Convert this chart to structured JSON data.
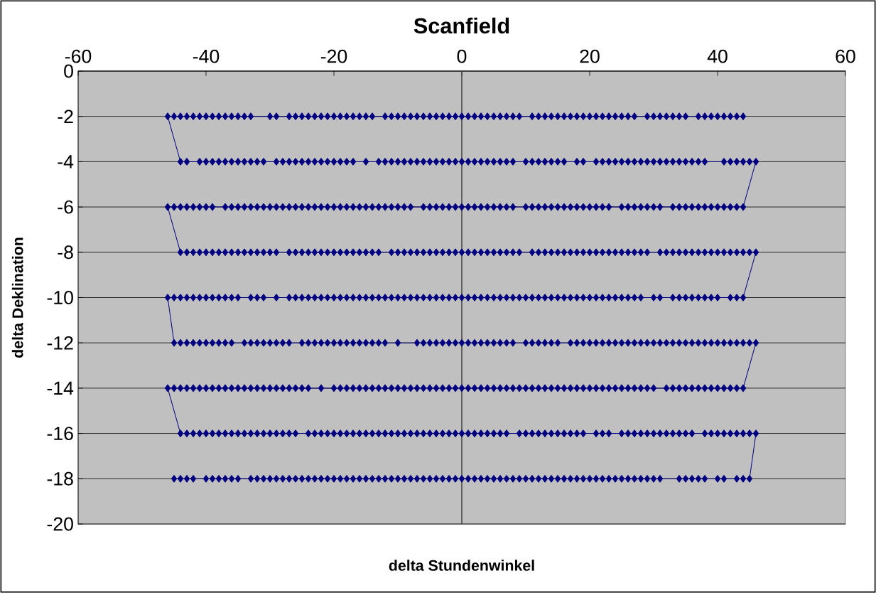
{
  "chart_data": {
    "type": "line",
    "title": "Scanfield",
    "xlabel": "delta Stundenwinkel",
    "ylabel": "delta Deklination",
    "xlim": [
      -60,
      60
    ],
    "xticks": [
      -60,
      -40,
      -20,
      0,
      20,
      40,
      60
    ],
    "ylim": [
      -20,
      0
    ],
    "yticks": [
      0,
      -2,
      -4,
      -6,
      -8,
      -10,
      -12,
      -14,
      -16,
      -18,
      -20
    ],
    "grid": "y",
    "marker": "diamond",
    "line_style": "solid",
    "series": [
      {
        "color": "#000080",
        "x": [
          44,
          43,
          42,
          41,
          40,
          39,
          38,
          37,
          35,
          34,
          33,
          32,
          31,
          30,
          29,
          27,
          26,
          25,
          24,
          23,
          22,
          21,
          20,
          19,
          18,
          17,
          16,
          15,
          14,
          13,
          12,
          11,
          9,
          8,
          7,
          6,
          5,
          4,
          3,
          2,
          1,
          0,
          -1,
          -2,
          -3,
          -4,
          -5,
          -6,
          -7,
          -8,
          -9,
          -10,
          -11,
          -12,
          -14,
          -15,
          -16,
          -17,
          -18,
          -19,
          -20,
          -21,
          -22,
          -23,
          -24,
          -25,
          -26,
          -27,
          -29,
          -30,
          -33,
          -34,
          -35,
          -36,
          -37,
          -38,
          -39,
          -40,
          -41,
          -42,
          -43,
          -44,
          -45,
          -46,
          -44,
          -43,
          -41,
          -40,
          -39,
          -38,
          -37,
          -36,
          -35,
          -34,
          -33,
          -32,
          -31,
          -29,
          -28,
          -27,
          -26,
          -25,
          -24,
          -23,
          -22,
          -21,
          -20,
          -19,
          -18,
          -17,
          -15,
          -13,
          -12,
          -11,
          -10,
          -9,
          -8,
          -7,
          -6,
          -5,
          -4,
          -3,
          -2,
          -1,
          0,
          1,
          2,
          3,
          4,
          5,
          6,
          7,
          8,
          10,
          11,
          12,
          13,
          14,
          15,
          16,
          18,
          19,
          21,
          22,
          23,
          24,
          25,
          26,
          27,
          28,
          29,
          30,
          31,
          32,
          33,
          34,
          35,
          36,
          37,
          38,
          41,
          42,
          43,
          44,
          45,
          46,
          44,
          43,
          42,
          41,
          40,
          39,
          38,
          37,
          36,
          35,
          34,
          33,
          31,
          30,
          29,
          28,
          27,
          26,
          25,
          23,
          22,
          21,
          20,
          19,
          18,
          17,
          16,
          15,
          14,
          13,
          12,
          11,
          10,
          8,
          7,
          6,
          5,
          4,
          3,
          2,
          1,
          0,
          -1,
          -2,
          -3,
          -4,
          -5,
          -6,
          -8,
          -9,
          -10,
          -11,
          -12,
          -13,
          -14,
          -15,
          -16,
          -17,
          -18,
          -19,
          -20,
          -21,
          -22,
          -23,
          -24,
          -25,
          -26,
          -27,
          -28,
          -29,
          -30,
          -31,
          -32,
          -33,
          -34,
          -35,
          -36,
          -37,
          -39,
          -40,
          -41,
          -42,
          -43,
          -44,
          -45,
          -46,
          -44,
          -43,
          -42,
          -41,
          -40,
          -39,
          -38,
          -37,
          -36,
          -35,
          -34,
          -33,
          -32,
          -31,
          -30,
          -29,
          -27,
          -26,
          -25,
          -24,
          -23,
          -22,
          -21,
          -20,
          -19,
          -18,
          -17,
          -16,
          -15,
          -14,
          -13,
          -11,
          -10,
          -9,
          -8,
          -7,
          -6,
          -5,
          -4,
          -3,
          -2,
          -1,
          0,
          1,
          2,
          3,
          4,
          5,
          6,
          7,
          8,
          9,
          11,
          12,
          13,
          14,
          15,
          16,
          17,
          18,
          19,
          20,
          21,
          22,
          23,
          24,
          25,
          26,
          27,
          28,
          29,
          31,
          32,
          33,
          34,
          35,
          36,
          37,
          38,
          39,
          40,
          41,
          42,
          43,
          44,
          45,
          46,
          44,
          43,
          42,
          40,
          39,
          38,
          37,
          36,
          35,
          34,
          33,
          31,
          30,
          28,
          27,
          26,
          25,
          24,
          23,
          22,
          21,
          20,
          19,
          18,
          17,
          16,
          15,
          14,
          13,
          12,
          11,
          10,
          9,
          8,
          7,
          6,
          5,
          4,
          3,
          2,
          1,
          0,
          -1,
          -2,
          -3,
          -4,
          -5,
          -6,
          -7,
          -8,
          -9,
          -10,
          -11,
          -12,
          -13,
          -14,
          -15,
          -16,
          -17,
          -18,
          -19,
          -20,
          -21,
          -22,
          -23,
          -24,
          -25,
          -26,
          -27,
          -29,
          -31,
          -32,
          -33,
          -35,
          -36,
          -37,
          -38,
          -39,
          -40,
          -41,
          -42,
          -43,
          -44,
          -45,
          -46,
          -45,
          -44,
          -43,
          -42,
          -41,
          -40,
          -39,
          -38,
          -37,
          -36,
          -34,
          -33,
          -32,
          -31,
          -30,
          -29,
          -28,
          -27,
          -25,
          -24,
          -23,
          -22,
          -21,
          -20,
          -19,
          -18,
          -17,
          -16,
          -15,
          -14,
          -13,
          -12,
          -10,
          -7,
          -6,
          -5,
          -4,
          -3,
          -2,
          -1,
          0,
          1,
          2,
          3,
          4,
          5,
          6,
          7,
          8,
          10,
          11,
          12,
          13,
          14,
          15,
          17,
          18,
          19,
          20,
          21,
          22,
          23,
          24,
          25,
          26,
          27,
          28,
          29,
          30,
          31,
          32,
          33,
          34,
          35,
          36,
          37,
          38,
          39,
          40,
          41,
          42,
          43,
          44,
          45,
          46,
          44,
          43,
          42,
          41,
          40,
          39,
          38,
          37,
          36,
          35,
          34,
          33,
          32,
          30,
          29,
          28,
          27,
          26,
          25,
          24,
          23,
          22,
          21,
          20,
          19,
          18,
          17,
          16,
          15,
          14,
          13,
          12,
          11,
          10,
          9,
          8,
          7,
          6,
          5,
          4,
          3,
          2,
          1,
          0,
          -1,
          -2,
          -3,
          -4,
          -5,
          -6,
          -7,
          -8,
          -9,
          -10,
          -11,
          -12,
          -13,
          -14,
          -15,
          -16,
          -17,
          -18,
          -19,
          -20,
          -22,
          -24,
          -25,
          -26,
          -27,
          -28,
          -29,
          -30,
          -31,
          -32,
          -33,
          -34,
          -35,
          -36,
          -37,
          -38,
          -39,
          -40,
          -41,
          -42,
          -43,
          -44,
          -45,
          -46,
          -44,
          -43,
          -42,
          -41,
          -40,
          -39,
          -38,
          -37,
          -36,
          -35,
          -34,
          -33,
          -32,
          -31,
          -30,
          -29,
          -28,
          -27,
          -26,
          -24,
          -23,
          -22,
          -21,
          -20,
          -19,
          -18,
          -17,
          -16,
          -15,
          -14,
          -13,
          -12,
          -11,
          -10,
          -9,
          -8,
          -7,
          -6,
          -5,
          -4,
          -3,
          -2,
          -1,
          0,
          1,
          2,
          3,
          4,
          5,
          6,
          7,
          9,
          10,
          11,
          12,
          13,
          14,
          15,
          16,
          17,
          18,
          19,
          21,
          22,
          23,
          25,
          26,
          27,
          28,
          29,
          30,
          31,
          32,
          33,
          34,
          35,
          36,
          38,
          39,
          40,
          41,
          42,
          43,
          44,
          45,
          46,
          45,
          44,
          43,
          41,
          40,
          38,
          37,
          36,
          35,
          34,
          31,
          30,
          29,
          28,
          27,
          26,
          25,
          24,
          23,
          22,
          21,
          20,
          19,
          18,
          17,
          16,
          15,
          14,
          13,
          12,
          11,
          10,
          9,
          8,
          7,
          6,
          5,
          4,
          3,
          2,
          1,
          0,
          -1,
          -2,
          -3,
          -4,
          -5,
          -6,
          -7,
          -8,
          -9,
          -10,
          -11,
          -12,
          -13,
          -14,
          -15,
          -16,
          -17,
          -18,
          -19,
          -20,
          -21,
          -22,
          -23,
          -24,
          -25,
          -26,
          -27,
          -28,
          -29,
          -30,
          -31,
          -32,
          -33,
          -35,
          -36,
          -37,
          -38,
          -39,
          -40,
          -42,
          -43,
          -44,
          -45
        ],
        "values": [
          -2,
          -2,
          -2,
          -2,
          -2,
          -2,
          -2,
          -2,
          -2,
          -2,
          -2,
          -2,
          -2,
          -2,
          -2,
          -2,
          -2,
          -2,
          -2,
          -2,
          -2,
          -2,
          -2,
          -2,
          -2,
          -2,
          -2,
          -2,
          -2,
          -2,
          -2,
          -2,
          -2,
          -2,
          -2,
          -2,
          -2,
          -2,
          -2,
          -2,
          -2,
          -2,
          -2,
          -2,
          -2,
          -2,
          -2,
          -2,
          -2,
          -2,
          -2,
          -2,
          -2,
          -2,
          -2,
          -2,
          -2,
          -2,
          -2,
          -2,
          -2,
          -2,
          -2,
          -2,
          -2,
          -2,
          -2,
          -2,
          -2,
          -2,
          -2,
          -2,
          -2,
          -2,
          -2,
          -2,
          -2,
          -2,
          -2,
          -2,
          -2,
          -2,
          -2,
          -2,
          -4,
          -4,
          -4,
          -4,
          -4,
          -4,
          -4,
          -4,
          -4,
          -4,
          -4,
          -4,
          -4,
          -4,
          -4,
          -4,
          -4,
          -4,
          -4,
          -4,
          -4,
          -4,
          -4,
          -4,
          -4,
          -4,
          -4,
          -4,
          -4,
          -4,
          -4,
          -4,
          -4,
          -4,
          -4,
          -4,
          -4,
          -4,
          -4,
          -4,
          -4,
          -4,
          -4,
          -4,
          -4,
          -4,
          -4,
          -4,
          -4,
          -4,
          -4,
          -4,
          -4,
          -4,
          -4,
          -4,
          -4,
          -4,
          -4,
          -4,
          -4,
          -4,
          -4,
          -4,
          -4,
          -4,
          -4,
          -4,
          -4,
          -4,
          -4,
          -4,
          -4,
          -4,
          -4,
          -4,
          -4,
          -4,
          -4,
          -4,
          -4,
          -4,
          -6,
          -6,
          -6,
          -6,
          -6,
          -6,
          -6,
          -6,
          -6,
          -6,
          -6,
          -6,
          -6,
          -6,
          -6,
          -6,
          -6,
          -6,
          -6,
          -6,
          -6,
          -6,
          -6,
          -6,
          -6,
          -6,
          -6,
          -6,
          -6,
          -6,
          -6,
          -6,
          -6,
          -6,
          -6,
          -6,
          -6,
          -6,
          -6,
          -6,
          -6,
          -6,
          -6,
          -6,
          -6,
          -6,
          -6,
          -6,
          -6,
          -6,
          -6,
          -6,
          -6,
          -6,
          -6,
          -6,
          -6,
          -6,
          -6,
          -6,
          -6,
          -6,
          -6,
          -6,
          -6,
          -6,
          -6,
          -6,
          -6,
          -6,
          -6,
          -6,
          -6,
          -6,
          -6,
          -6,
          -6,
          -6,
          -6,
          -6,
          -6,
          -6,
          -6,
          -6,
          -6,
          -6,
          -8,
          -8,
          -8,
          -8,
          -8,
          -8,
          -8,
          -8,
          -8,
          -8,
          -8,
          -8,
          -8,
          -8,
          -8,
          -8,
          -8,
          -8,
          -8,
          -8,
          -8,
          -8,
          -8,
          -8,
          -8,
          -8,
          -8,
          -8,
          -8,
          -8,
          -8,
          -8,
          -8,
          -8,
          -8,
          -8,
          -8,
          -8,
          -8,
          -8,
          -8,
          -8,
          -8,
          -8,
          -8,
          -8,
          -8,
          -8,
          -8,
          -8,
          -8,
          -8,
          -8,
          -8,
          -8,
          -8,
          -8,
          -8,
          -8,
          -8,
          -8,
          -8,
          -8,
          -8,
          -8,
          -8,
          -8,
          -8,
          -8,
          -8,
          -8,
          -8,
          -8,
          -8,
          -8,
          -8,
          -8,
          -8,
          -8,
          -8,
          -8,
          -8,
          -8,
          -8,
          -8,
          -8,
          -8,
          -10,
          -10,
          -10,
          -10,
          -10,
          -10,
          -10,
          -10,
          -10,
          -10,
          -10,
          -10,
          -10,
          -10,
          -10,
          -10,
          -10,
          -10,
          -10,
          -10,
          -10,
          -10,
          -10,
          -10,
          -10,
          -10,
          -10,
          -10,
          -10,
          -10,
          -10,
          -10,
          -10,
          -10,
          -10,
          -10,
          -10,
          -10,
          -10,
          -10,
          -10,
          -10,
          -10,
          -10,
          -10,
          -10,
          -10,
          -10,
          -10,
          -10,
          -10,
          -10,
          -10,
          -10,
          -10,
          -10,
          -10,
          -10,
          -10,
          -10,
          -10,
          -10,
          -10,
          -10,
          -10,
          -10,
          -10,
          -10,
          -10,
          -10,
          -10,
          -10,
          -10,
          -10,
          -10,
          -10,
          -10,
          -10,
          -10,
          -10,
          -10,
          -10,
          -10,
          -10,
          -10,
          -12,
          -12,
          -12,
          -12,
          -12,
          -12,
          -12,
          -12,
          -12,
          -12,
          -12,
          -12,
          -12,
          -12,
          -12,
          -12,
          -12,
          -12,
          -12,
          -12,
          -12,
          -12,
          -12,
          -12,
          -12,
          -12,
          -12,
          -12,
          -12,
          -12,
          -12,
          -12,
          -12,
          -12,
          -12,
          -12,
          -12,
          -12,
          -12,
          -12,
          -12,
          -12,
          -12,
          -12,
          -12,
          -12,
          -12,
          -12,
          -12,
          -12,
          -12,
          -12,
          -12,
          -12,
          -12,
          -12,
          -12,
          -12,
          -12,
          -12,
          -12,
          -12,
          -12,
          -12,
          -12,
          -12,
          -12,
          -12,
          -12,
          -12,
          -12,
          -12,
          -12,
          -12,
          -12,
          -12,
          -12,
          -12,
          -12,
          -12,
          -12,
          -12,
          -12,
          -12,
          -12,
          -14,
          -14,
          -14,
          -14,
          -14,
          -14,
          -14,
          -14,
          -14,
          -14,
          -14,
          -14,
          -14,
          -14,
          -14,
          -14,
          -14,
          -14,
          -14,
          -14,
          -14,
          -14,
          -14,
          -14,
          -14,
          -14,
          -14,
          -14,
          -14,
          -14,
          -14,
          -14,
          -14,
          -14,
          -14,
          -14,
          -14,
          -14,
          -14,
          -14,
          -14,
          -14,
          -14,
          -14,
          -14,
          -14,
          -14,
          -14,
          -14,
          -14,
          -14,
          -14,
          -14,
          -14,
          -14,
          -14,
          -14,
          -14,
          -14,
          -14,
          -14,
          -14,
          -14,
          -14,
          -14,
          -14,
          -14,
          -14,
          -14,
          -14,
          -14,
          -14,
          -14,
          -14,
          -14,
          -14,
          -14,
          -14,
          -14,
          -14,
          -14,
          -14,
          -14,
          -14,
          -14,
          -14,
          -14,
          -14,
          -16,
          -16,
          -16,
          -16,
          -16,
          -16,
          -16,
          -16,
          -16,
          -16,
          -16,
          -16,
          -16,
          -16,
          -16,
          -16,
          -16,
          -16,
          -16,
          -16,
          -16,
          -16,
          -16,
          -16,
          -16,
          -16,
          -16,
          -16,
          -16,
          -16,
          -16,
          -16,
          -16,
          -16,
          -16,
          -16,
          -16,
          -16,
          -16,
          -16,
          -16,
          -16,
          -16,
          -16,
          -16,
          -16,
          -16,
          -16,
          -16,
          -16,
          -16,
          -16,
          -16,
          -16,
          -16,
          -16,
          -16,
          -16,
          -16,
          -16,
          -16,
          -16,
          -16,
          -16,
          -16,
          -16,
          -16,
          -16,
          -16,
          -16,
          -16,
          -16,
          -16,
          -16,
          -16,
          -16,
          -16,
          -16,
          -16,
          -16,
          -16,
          -16,
          -16,
          -16,
          -16,
          -16,
          -18,
          -18,
          -18,
          -18,
          -18,
          -18,
          -18,
          -18,
          -18,
          -18,
          -18,
          -18,
          -18,
          -18,
          -18,
          -18,
          -18,
          -18,
          -18,
          -18,
          -18,
          -18,
          -18,
          -18,
          -18,
          -18,
          -18,
          -18,
          -18,
          -18,
          -18,
          -18,
          -18,
          -18,
          -18,
          -18,
          -18,
          -18,
          -18,
          -18,
          -18,
          -18,
          -18,
          -18,
          -18,
          -18,
          -18,
          -18,
          -18,
          -18,
          -18,
          -18,
          -18,
          -18,
          -18,
          -18,
          -18,
          -18,
          -18,
          -18,
          -18,
          -18,
          -18,
          -18,
          -18,
          -18,
          -18,
          -18,
          -18,
          -18,
          -18,
          -18,
          -18,
          -18,
          -18,
          -18,
          -18,
          -18,
          -18,
          -18,
          -18,
          -18,
          -18,
          -18,
          -18
        ]
      }
    ]
  }
}
